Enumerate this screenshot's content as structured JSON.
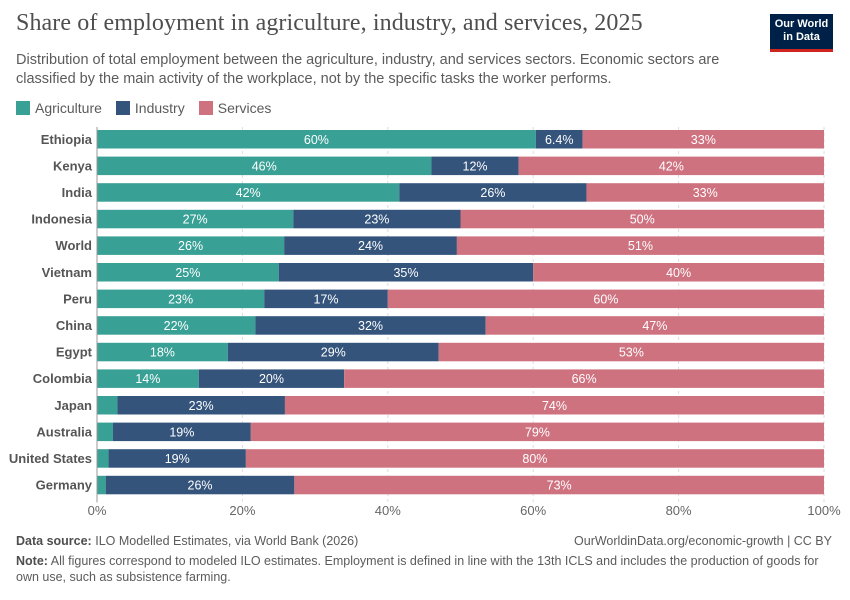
{
  "title": "Share of employment in agriculture, industry, and services, 2025",
  "subtitle": "Distribution of total employment between the agriculture, industry, and services sectors. Economic sectors are classified by the main activity of the workplace, not by the specific tasks the worker performs.",
  "logo": "Our World in Data",
  "footer": {
    "source_label": "Data source:",
    "source": "ILO Modelled Estimates, via World Bank (2026)",
    "url": "OurWorldinData.org/economic-growth | CC BY",
    "note_label": "Note:",
    "note": "All figures correspond to modeled ILO estimates. Employment is defined in line with the 13th ICLS and includes the production of goods for own use, such as subsistence farming."
  },
  "chart_data": {
    "type": "bar",
    "orientation": "horizontal",
    "stacked": true,
    "categories": [
      "Ethiopia",
      "Kenya",
      "India",
      "Indonesia",
      "World",
      "Vietnam",
      "Peru",
      "China",
      "Egypt",
      "Colombia",
      "Japan",
      "Australia",
      "United States",
      "Germany"
    ],
    "series": [
      {
        "name": "Agriculture",
        "color": "#38a095",
        "values": [
          60,
          46,
          42,
          27,
          26,
          25,
          23,
          22,
          18,
          14,
          2.8,
          2.2,
          1.6,
          1.2
        ]
      },
      {
        "name": "Industry",
        "color": "#34547c",
        "values": [
          6.4,
          12,
          26,
          23,
          24,
          35,
          17,
          32,
          29,
          20,
          23,
          19,
          19,
          26
        ]
      },
      {
        "name": "Services",
        "color": "#cf7280",
        "values": [
          33,
          42,
          33,
          50,
          51,
          40,
          60,
          47,
          53,
          66,
          74,
          79,
          80,
          73
        ]
      }
    ],
    "xlim": [
      0,
      100
    ],
    "xticks": [
      "0%",
      "20%",
      "40%",
      "60%",
      "80%",
      "100%"
    ],
    "grid": "vertical dashed",
    "legend": "top-left"
  }
}
